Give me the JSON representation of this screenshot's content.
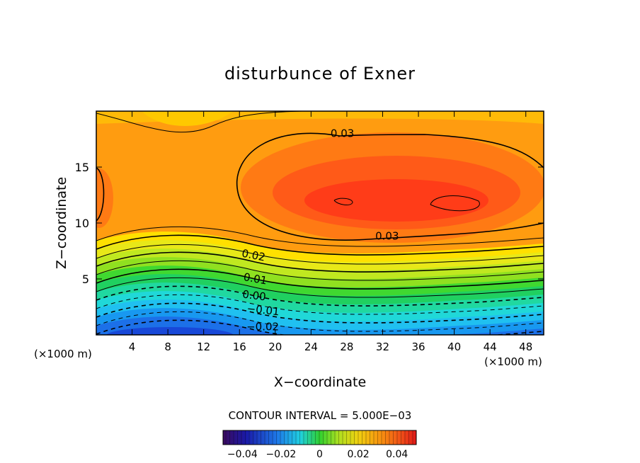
{
  "chart_data": {
    "type": "heatmap",
    "title": "disturbunce of Exner",
    "xlabel": "X−coordinate",
    "ylabel": "Z−coordinate",
    "x_unit_left": "(×1000 m)",
    "x_unit_right": "(×1000 m)",
    "xlim": [
      0,
      50
    ],
    "ylim": [
      0,
      20
    ],
    "x_ticks": [
      4,
      8,
      12,
      16,
      20,
      24,
      28,
      32,
      36,
      40,
      44,
      48
    ],
    "y_ticks": [
      5,
      10,
      15
    ],
    "contour_interval_text": "CONTOUR INTERVAL = 5.000E−03",
    "colorbar": {
      "range": [
        -0.05,
        0.05
      ],
      "tick_values": [
        -0.04,
        -0.02,
        0,
        0.02,
        0.04
      ],
      "tick_labels": [
        "−0.04",
        "−0.02",
        "0",
        "0.02",
        "0.04"
      ]
    },
    "contour_labels": [
      {
        "text": "0.03",
        "x": 27.5,
        "z": 17.7,
        "rotate": 0
      },
      {
        "text": "0.03",
        "x": 32.5,
        "z": 8.5,
        "rotate": 0
      },
      {
        "text": "0.02",
        "x": 17.5,
        "z": 6.8,
        "rotate": 11
      },
      {
        "text": "0.01",
        "x": 17.7,
        "z": 4.7,
        "rotate": 10
      },
      {
        "text": "0.00",
        "x": 17.6,
        "z": 3.2,
        "rotate": 7
      },
      {
        "text": "−0.01",
        "x": 18.6,
        "z": 1.9,
        "rotate": 6
      },
      {
        "text": "−0.02",
        "x": 18.6,
        "z": 0.4,
        "rotate": 0
      }
    ],
    "grid": false
  }
}
